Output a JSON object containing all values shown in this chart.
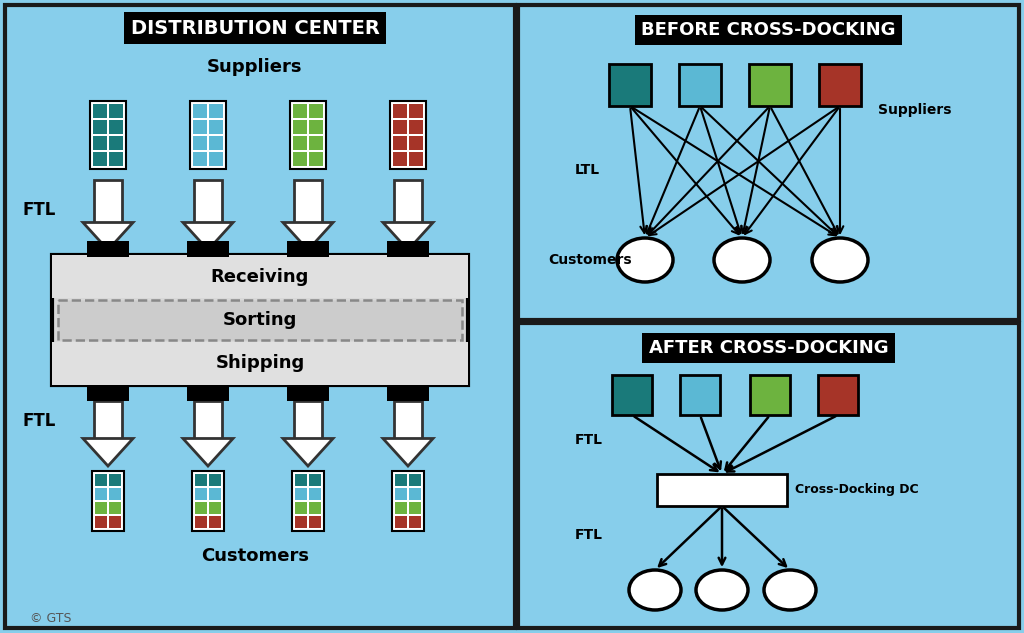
{
  "bg_color": "#87CEEB",
  "teal_dark": "#1A7A7A",
  "teal_light": "#5BB8D4",
  "green": "#6DB33F",
  "red_brown": "#A63428",
  "colors": [
    "#1A7A7A",
    "#5BB8D4",
    "#6DB33F",
    "#A63428"
  ],
  "title_left": "DISTRIBUTION CENTER",
  "title_before": "BEFORE CROSS-DOCKING",
  "title_after": "AFTER CROSS-DOCKING",
  "copyright": "© GTS",
  "panel_border": "#1A1A1A",
  "building_fill": "#D8D8D8",
  "receiving_fill": "#E0E0E0",
  "shipping_fill": "#E0E0E0",
  "sorting_fill": "#CCCCCC"
}
